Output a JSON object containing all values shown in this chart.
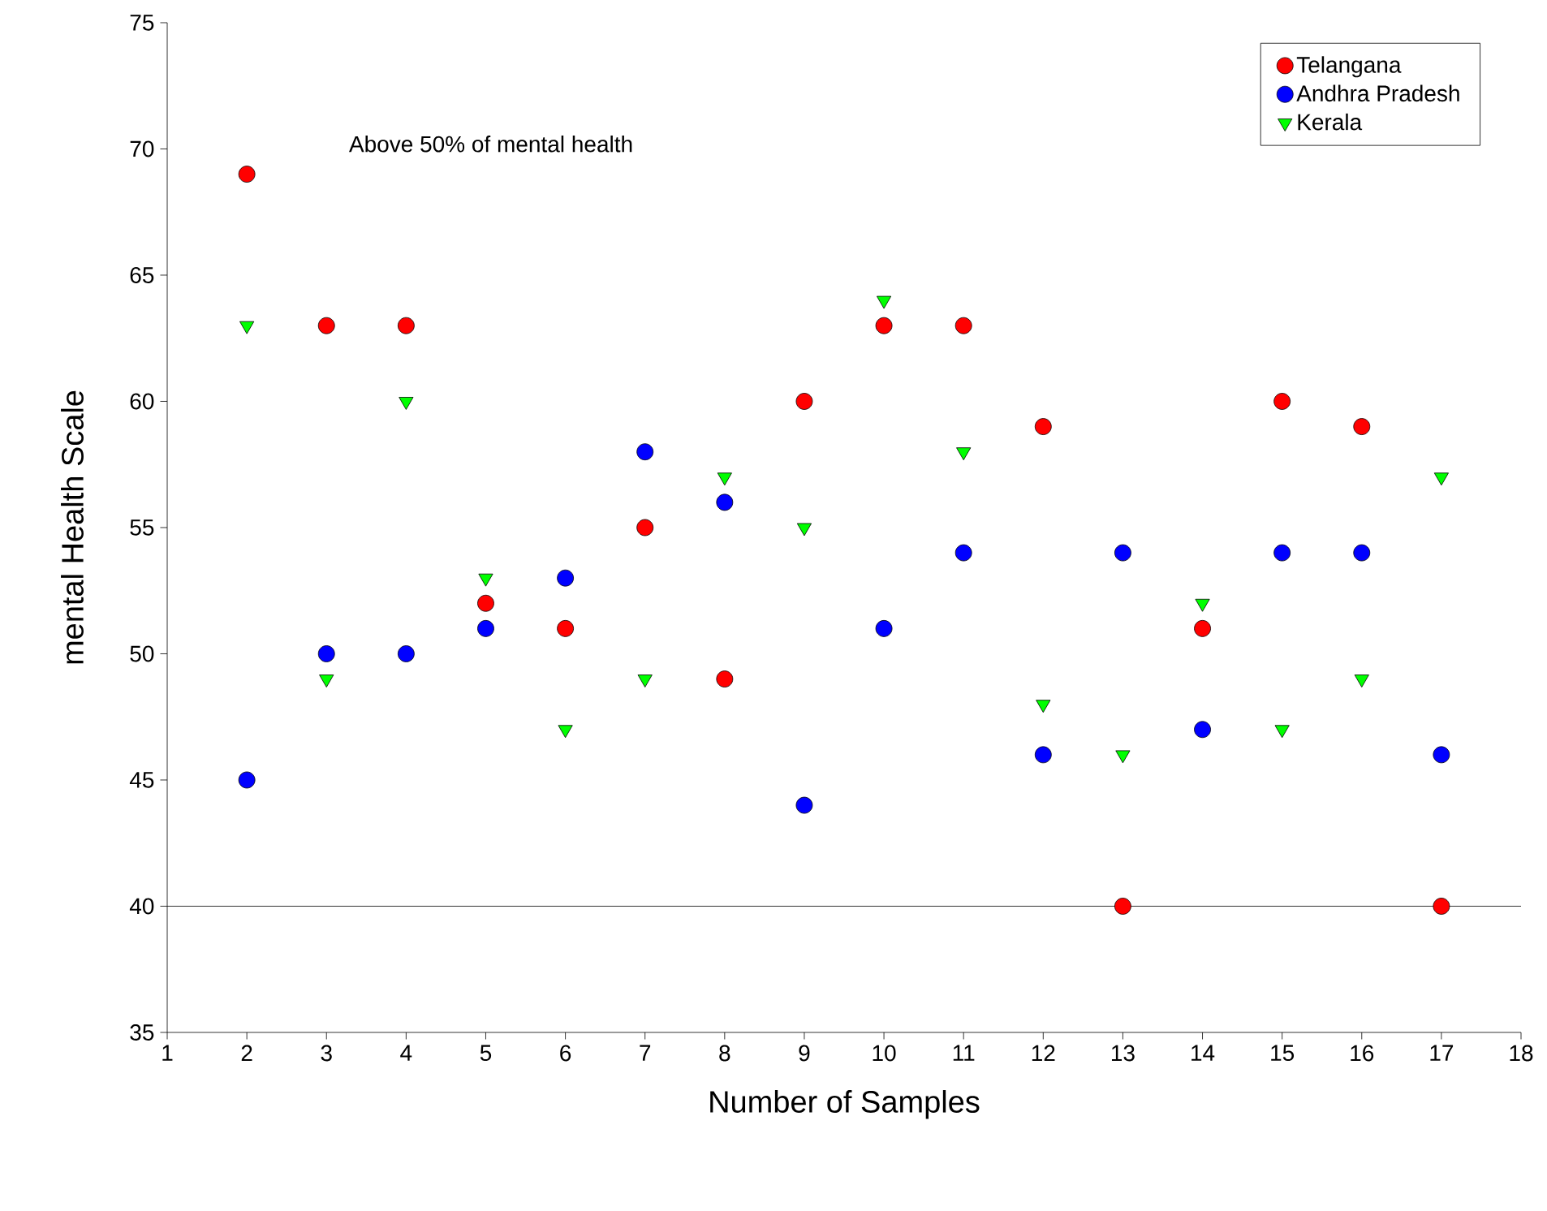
{
  "chart_data": {
    "type": "scatter",
    "xlabel": "Number of Samples",
    "ylabel": "mental Health Scale",
    "annotations": [
      "Above 50%   of mental health"
    ],
    "x": [
      2,
      3,
      4,
      5,
      6,
      7,
      8,
      9,
      10,
      11,
      12,
      13,
      14,
      15,
      16,
      17
    ],
    "series": [
      {
        "name": "Telangana",
        "color": "#ff0000",
        "marker": "circle",
        "values": [
          69,
          63,
          63,
          52,
          51,
          55,
          49,
          60,
          63,
          63,
          59,
          40,
          51,
          60,
          59,
          40
        ]
      },
      {
        "name": "Andhra Pradesh",
        "color": "#0000ff",
        "marker": "circle",
        "values": [
          45,
          50,
          50,
          51,
          53,
          58,
          56,
          44,
          51,
          54,
          46,
          54,
          47,
          54,
          54,
          46
        ]
      },
      {
        "name": "Kerala",
        "color": "#00ff00",
        "marker": "triangle",
        "values": [
          63,
          49,
          60,
          53,
          47,
          49,
          57,
          55,
          64,
          58,
          48,
          46,
          52,
          47,
          49,
          57
        ]
      }
    ],
    "xlim": [
      1,
      18
    ],
    "xticks": [
      1,
      2,
      3,
      4,
      5,
      6,
      7,
      8,
      9,
      10,
      11,
      12,
      13,
      14,
      15,
      16,
      17,
      18
    ],
    "ylim": [
      35,
      75
    ],
    "yticks": [
      35,
      40,
      45,
      50,
      55,
      60,
      65,
      70,
      75
    ],
    "ref_lines": [
      {
        "axis": "y",
        "value": 40,
        "color": "#000000"
      }
    ],
    "legend": "top right",
    "grid": false
  }
}
